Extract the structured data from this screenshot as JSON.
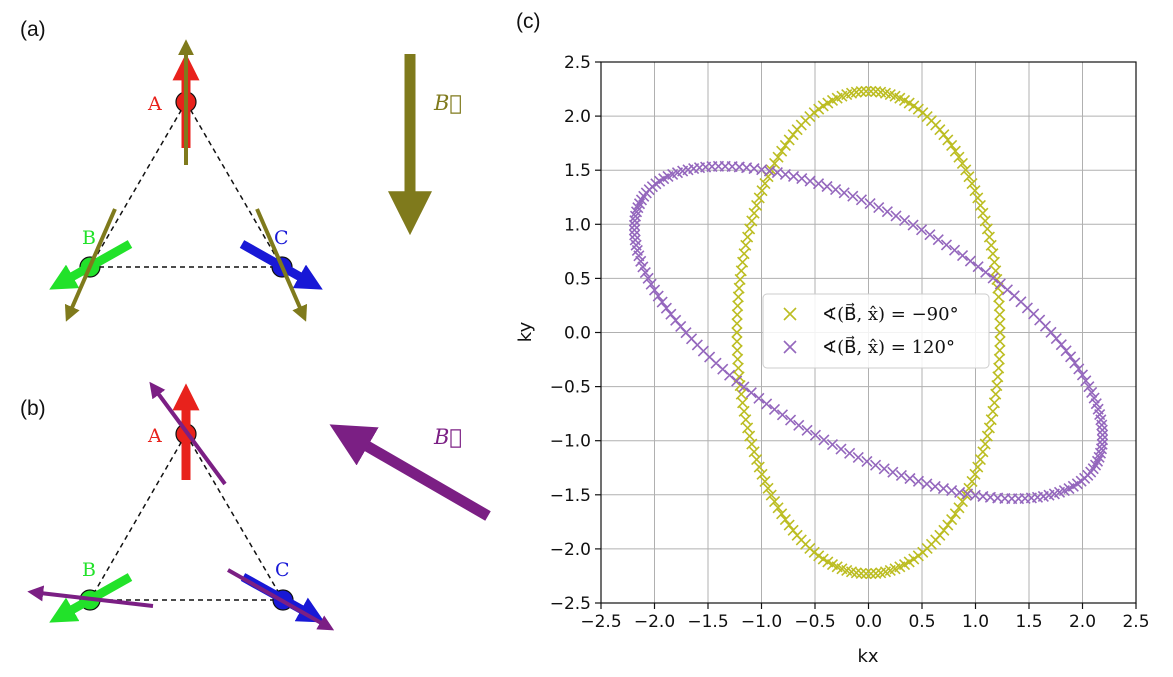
{
  "panels": {
    "a": {
      "label": "(a)",
      "sites": [
        "A",
        "B",
        "C"
      ],
      "field_label": "B⃗",
      "field_color": "#7f7a1c"
    },
    "b": {
      "label": "(b)",
      "sites": [
        "A",
        "B",
        "C"
      ],
      "field_label": "B⃗",
      "field_color": "#7b1f84"
    },
    "c": {
      "label": "(c)"
    }
  },
  "colors": {
    "site_A": "#e8221c",
    "site_B": "#22e22a",
    "site_C": "#1818d6",
    "series_1": "#bcbd22",
    "series_2": "#9467bd",
    "grid": "#b0b0b0"
  },
  "chart_data": {
    "type": "scatter",
    "xlabel": "kx",
    "ylabel": "ky",
    "xlim": [
      -2.5,
      2.5
    ],
    "ylim": [
      -2.5,
      2.5
    ],
    "xticks": [
      -2.5,
      -2.0,
      -1.5,
      -1.0,
      -0.5,
      0.0,
      0.5,
      1.0,
      1.5,
      2.0,
      2.5
    ],
    "yticks": [
      -2.5,
      -2.0,
      -1.5,
      -1.0,
      -0.5,
      0.0,
      0.5,
      1.0,
      1.5,
      2.0,
      2.5
    ],
    "xtick_labels": [
      "−2.5",
      "−2.0",
      "−1.5",
      "−1.0",
      "−0.5",
      "0.0",
      "0.5",
      "1.0",
      "1.5",
      "2.0",
      "2.5"
    ],
    "ytick_labels": [
      "−2.5",
      "−2.0",
      "−1.5",
      "−1.0",
      "−0.5",
      "0.0",
      "0.5",
      "1.0",
      "1.5",
      "2.0",
      "2.5"
    ],
    "grid": true,
    "legend_position": "center",
    "marker": "x",
    "series": [
      {
        "name": "∢(B⃗, x̂) = −90°",
        "color": "#bcbd22",
        "shape": "ellipse",
        "center": [
          0.0,
          0.0
        ],
        "semi_axis_x": 1.23,
        "semi_axis_y": 2.23,
        "orientation_deg": 0
      },
      {
        "name": "∢(B⃗, x̂) = 120°",
        "color": "#9467bd",
        "shape": "ellipse",
        "center": [
          0.0,
          0.0
        ],
        "semi_axis_major": 2.45,
        "semi_axis_minor": 1.07,
        "orientation_deg": -30
      }
    ]
  }
}
